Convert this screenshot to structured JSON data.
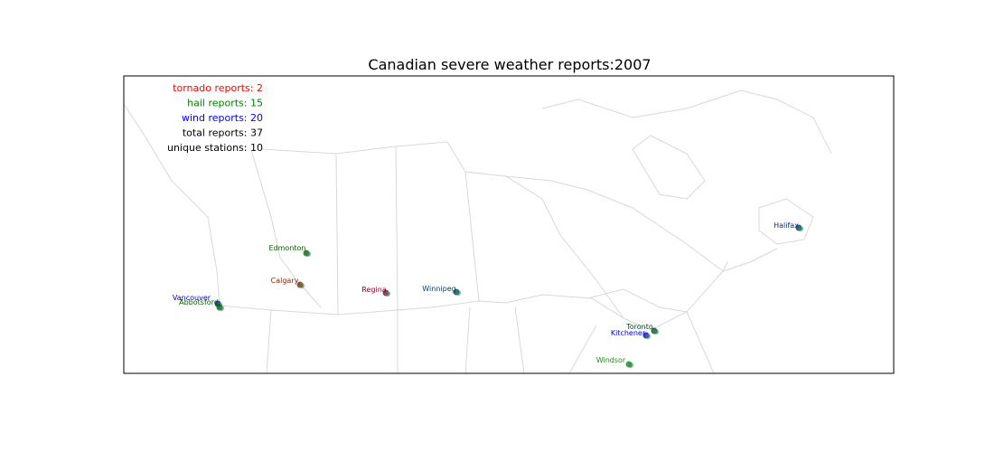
{
  "title": "Canadian severe weather reports:2007",
  "summary": [
    {
      "text": "tornado reports: 2",
      "color": "#ff0000"
    },
    {
      "text": "hail reports: 15",
      "color": "#008000"
    },
    {
      "text": "wind reports: 20",
      "color": "#0000ff"
    },
    {
      "text": "total reports: 37",
      "color": "#000000"
    },
    {
      "text": "unique stations: 10",
      "color": "#000000"
    }
  ],
  "stations": [
    {
      "name": "Vancouver",
      "color": "#0000cc"
    },
    {
      "name": "Abbotsford",
      "color": "#006400"
    },
    {
      "name": "Edmonton",
      "color": "#006400"
    },
    {
      "name": "Calgary",
      "color": "#8b2500"
    },
    {
      "name": "Regina",
      "color": "#8b0030"
    },
    {
      "name": "Winnipeg",
      "color": "#003f5c"
    },
    {
      "name": "Toronto",
      "color": "#004d1a"
    },
    {
      "name": "Kitchener",
      "color": "#0000cc"
    },
    {
      "name": "Windsor",
      "color": "#228b22"
    },
    {
      "name": "Halifax",
      "color": "#003366"
    }
  ]
}
